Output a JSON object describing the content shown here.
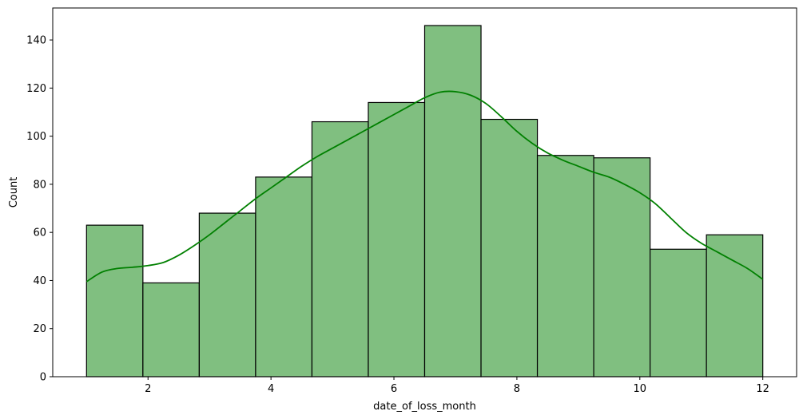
{
  "chart_data": {
    "type": "bar",
    "title": "",
    "xlabel": "date_of_loss_month",
    "ylabel": "Count",
    "xlim": [
      0.45,
      12.55
    ],
    "ylim": [
      0,
      153.3
    ],
    "xticks": [
      2,
      4,
      6,
      8,
      10,
      12
    ],
    "yticks": [
      0,
      20,
      40,
      60,
      80,
      100,
      120,
      140
    ],
    "bin_edges": [
      1.0,
      1.9167,
      2.8333,
      3.75,
      4.6667,
      5.5833,
      6.5,
      7.4167,
      8.3333,
      9.25,
      10.1667,
      11.0833,
      12.0
    ],
    "values": [
      63,
      39,
      68,
      83,
      106,
      114,
      146,
      107,
      92,
      91,
      53,
      59
    ],
    "bar_color": "#80bf80",
    "edge_color": "#000000",
    "kde": {
      "color": "#008000",
      "x": [
        1.0,
        1.25,
        1.5,
        1.75,
        2.0,
        2.25,
        2.5,
        2.75,
        3.0,
        3.25,
        3.5,
        3.75,
        4.0,
        4.25,
        4.5,
        4.75,
        5.0,
        5.25,
        5.5,
        5.75,
        6.0,
        6.25,
        6.5,
        6.75,
        7.0,
        7.25,
        7.5,
        7.75,
        8.0,
        8.25,
        8.5,
        8.75,
        9.0,
        9.25,
        9.5,
        9.75,
        10.0,
        10.25,
        10.5,
        10.75,
        11.0,
        11.25,
        11.5,
        11.75,
        12.0
      ],
      "y": [
        39.5,
        43.5,
        45.0,
        45.5,
        46.2,
        47.5,
        50.5,
        54.5,
        59.0,
        64.0,
        69.0,
        74.0,
        78.5,
        83.0,
        87.5,
        91.5,
        95.0,
        98.5,
        102.0,
        105.5,
        109.0,
        112.5,
        116.0,
        118.3,
        118.5,
        117.0,
        113.5,
        108.0,
        102.0,
        97.0,
        93.0,
        90.0,
        87.5,
        85.0,
        83.0,
        80.0,
        76.5,
        72.0,
        66.0,
        60.0,
        55.5,
        52.0,
        48.5,
        45.0,
        40.5
      ]
    }
  }
}
